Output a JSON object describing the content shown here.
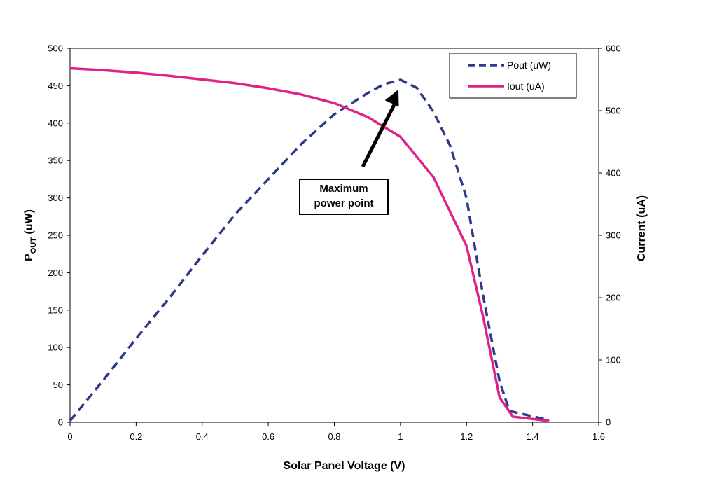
{
  "chart_data": {
    "type": "line",
    "xlabel": "Solar Panel Voltage (V)",
    "ylabel_left": "P",
    "ylabel_left_sub": "OUT",
    "ylabel_left_unit": " (uW)",
    "ylabel_right": "Current (uA)",
    "xlim": [
      0,
      1.6
    ],
    "ylim_left": [
      0,
      500
    ],
    "ylim_right": [
      0,
      600
    ],
    "xticks": [
      "0",
      "0.2",
      "0.4",
      "0.6",
      "0.8",
      "1",
      "1.2",
      "1.4",
      "1.6"
    ],
    "yticks_left": [
      "0",
      "50",
      "100",
      "150",
      "200",
      "250",
      "300",
      "350",
      "400",
      "450",
      "500"
    ],
    "yticks_right": [
      "0",
      "100",
      "200",
      "300",
      "400",
      "500",
      "600"
    ],
    "grid": false,
    "legend_position": "top-right",
    "series": [
      {
        "name": "Pout (uW)",
        "axis": "left",
        "style": "dashed",
        "color": "#2e3a87",
        "x": [
          0,
          0.1,
          0.2,
          0.3,
          0.4,
          0.5,
          0.6,
          0.7,
          0.8,
          0.9,
          0.95,
          1.0,
          1.05,
          1.1,
          1.15,
          1.2,
          1.25,
          1.3,
          1.33,
          1.45
        ],
        "y": [
          2,
          56,
          112,
          166,
          223,
          278,
          325,
          372,
          412,
          440,
          452,
          458,
          447,
          415,
          370,
          300,
          170,
          55,
          15,
          3
        ]
      },
      {
        "name": "Iout (uA)",
        "axis": "right",
        "style": "solid",
        "color": "#e0218a",
        "x": [
          0,
          0.1,
          0.2,
          0.3,
          0.4,
          0.5,
          0.6,
          0.7,
          0.8,
          0.9,
          1.0,
          1.1,
          1.2,
          1.25,
          1.3,
          1.34,
          1.45
        ],
        "y": [
          568,
          565,
          561,
          556,
          550,
          544,
          536,
          526,
          512,
          490,
          458,
          393,
          283,
          170,
          40,
          9,
          2
        ]
      }
    ],
    "annotation": {
      "lines": [
        "Maximum",
        "power point"
      ],
      "target_x": 1.0,
      "target_y": 458
    }
  }
}
